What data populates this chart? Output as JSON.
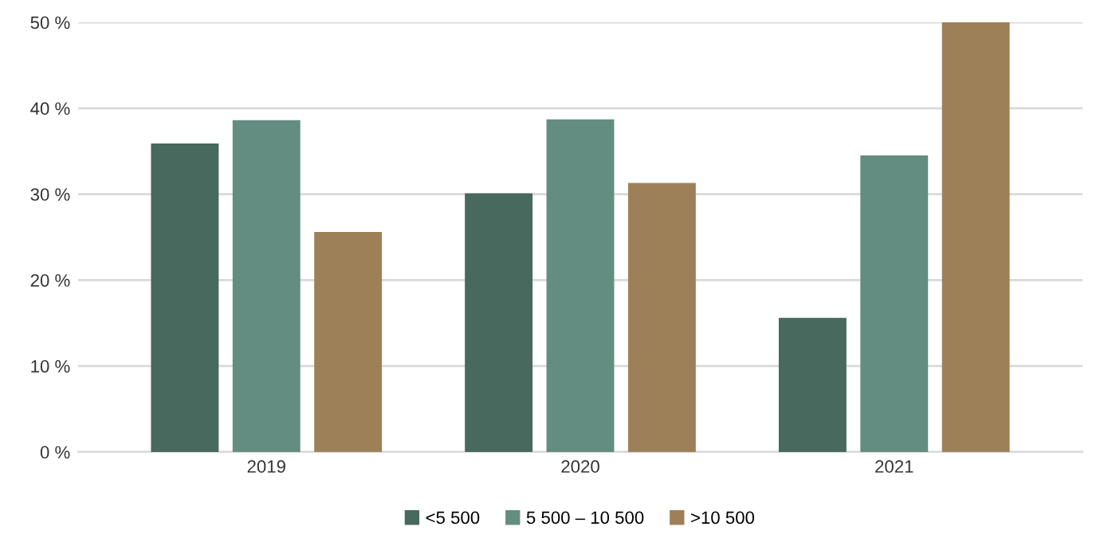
{
  "chart_data": {
    "type": "bar",
    "categories": [
      "2019",
      "2020",
      "2021"
    ],
    "series": [
      {
        "name": "<5 500",
        "color": "#48695d",
        "values": [
          35.8,
          30.0,
          15.5
        ]
      },
      {
        "name": "5 500 – 10 500",
        "color": "#638d80",
        "values": [
          38.5,
          38.6,
          34.4
        ]
      },
      {
        "name": ">10 500",
        "color": "#9e8058",
        "values": [
          25.5,
          31.2,
          50.0
        ]
      }
    ],
    "ylim": [
      0,
      50
    ],
    "yticks": [
      {
        "value": 0,
        "label": "0 %"
      },
      {
        "value": 10,
        "label": "10 %"
      },
      {
        "value": 20,
        "label": "20 %"
      },
      {
        "value": 30,
        "label": "30 %"
      },
      {
        "value": 40,
        "label": "40 %"
      },
      {
        "value": 50,
        "label": "50 %"
      }
    ],
    "grid": "y",
    "legend": "bottom"
  }
}
